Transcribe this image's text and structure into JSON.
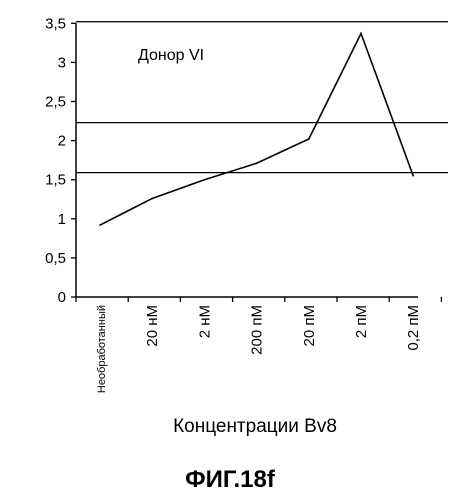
{
  "chart_data": {
    "type": "line",
    "categories": [
      "Необработанный",
      "20 нМ",
      "2 нМ",
      "200 пМ",
      "20 пМ",
      "2 пМ",
      "0,2 пМ"
    ],
    "series": [
      {
        "values": [
          0.92,
          1.26,
          1.5,
          1.71,
          2.02,
          3.37,
          1.55
        ]
      }
    ],
    "reference_lines": [
      3.52,
      2.23,
      1.59
    ],
    "ylim": [
      0,
      3.5
    ],
    "yticks": [
      0,
      0.5,
      1,
      1.5,
      2,
      2.5,
      3,
      3.5
    ],
    "ytick_labels": [
      "0",
      "0,5",
      "1",
      "1,5",
      "2",
      "2,5",
      "3",
      "3,5"
    ],
    "annotation": "Донор VI",
    "xlabel": "Концентрации Bv8",
    "caption": "ФИГ.18f",
    "line_color": "#000000"
  }
}
